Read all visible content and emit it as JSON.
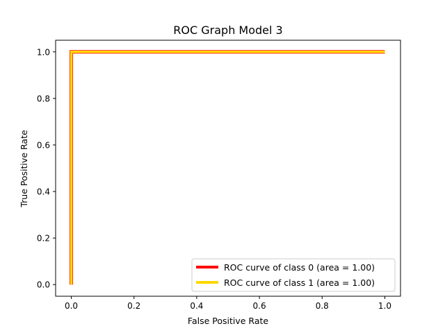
{
  "chart_data": {
    "type": "line",
    "title": "ROC Graph Model 3",
    "xlabel": "False Positive Rate",
    "ylabel": "True Positive Rate",
    "xlim": [
      -0.05,
      1.05
    ],
    "ylim": [
      -0.05,
      1.05
    ],
    "xticks": [
      0.0,
      0.2,
      0.4,
      0.6,
      0.8,
      1.0
    ],
    "yticks": [
      0.0,
      0.2,
      0.4,
      0.6,
      0.8,
      1.0
    ],
    "xtick_labels": [
      "0.0",
      "0.2",
      "0.4",
      "0.6",
      "0.8",
      "1.0"
    ],
    "ytick_labels": [
      "0.0",
      "0.2",
      "0.4",
      "0.6",
      "0.8",
      "1.0"
    ],
    "grid": false,
    "legend_position": "lower-right",
    "series": [
      {
        "name": "ROC curve of class 0 (area = 1.00)",
        "color": "#ff0000",
        "x": [
          0.0,
          0.0,
          1.0
        ],
        "y": [
          0.0,
          1.0,
          1.0
        ]
      },
      {
        "name": "ROC curve of class 1 (area = 1.00)",
        "color": "#ffd700",
        "x": [
          0.0,
          0.0,
          1.0
        ],
        "y": [
          0.0,
          1.0,
          1.0
        ]
      }
    ]
  }
}
